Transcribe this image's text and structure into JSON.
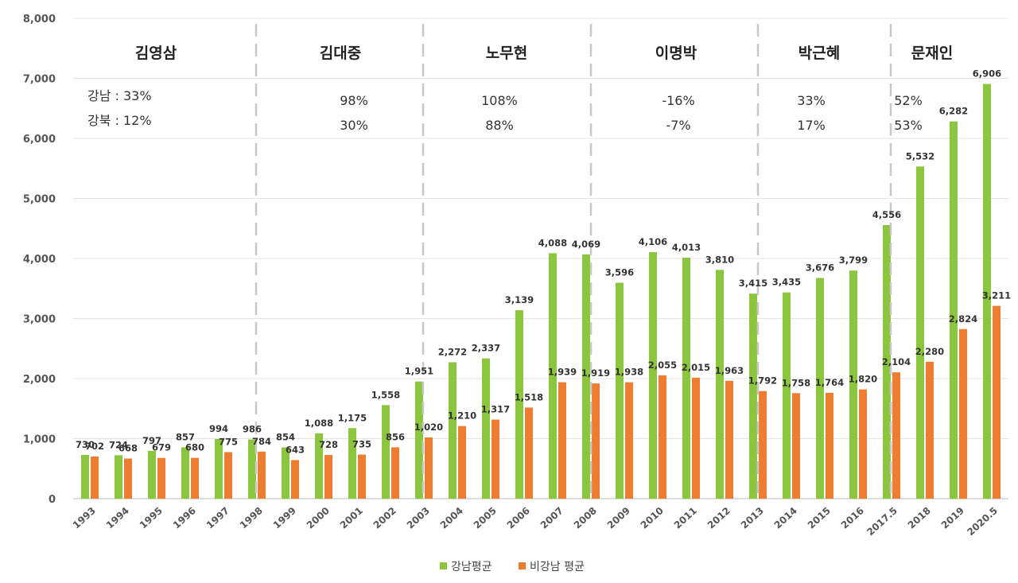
{
  "chart_data": {
    "type": "bar",
    "categories": [
      "1993",
      "1994",
      "1995",
      "1996",
      "1997",
      "1998",
      "1999",
      "2000",
      "2001",
      "2002",
      "2003",
      "2004",
      "2005",
      "2006",
      "2007",
      "2008",
      "2009",
      "2010",
      "2011",
      "2012",
      "2013",
      "2014",
      "2015",
      "2016",
      "2017.5",
      "2018",
      "2019",
      "2020.5"
    ],
    "series": [
      {
        "name": "강남평균",
        "color": "#8cc63f",
        "values": [
          730,
          724,
          797,
          857,
          994,
          986,
          854,
          1088,
          1175,
          1558,
          1951,
          2272,
          2337,
          3139,
          4088,
          4069,
          3596,
          4106,
          4013,
          3810,
          3415,
          3435,
          3676,
          3799,
          4556,
          5532,
          6282,
          6906
        ],
        "labels": [
          "730",
          "724",
          "797",
          "857",
          "994",
          "986",
          "854",
          "1,088",
          "1,175",
          "1,558",
          "1,951",
          "2,272",
          "2,337",
          "3,139",
          "4,088",
          "4,069",
          "3,596",
          "4,106",
          "4,013",
          "3,810",
          "3,415",
          "3,435",
          "3,676",
          "3,799",
          "4,556",
          "5,532",
          "6,282",
          "6,906"
        ]
      },
      {
        "name": "비강남 평균",
        "color": "#ed7d31",
        "values": [
          702,
          668,
          679,
          680,
          775,
          784,
          643,
          728,
          735,
          856,
          1020,
          1210,
          1317,
          1518,
          1939,
          1919,
          1938,
          2055,
          2015,
          1963,
          1792,
          1758,
          1764,
          1820,
          2104,
          2280,
          2824,
          3211
        ],
        "labels": [
          "702",
          "668",
          "679",
          "680",
          "775",
          "784",
          "643",
          "728",
          "735",
          "856",
          "1,020",
          "1,210",
          "1,317",
          "1,518",
          "1,939",
          "1,919",
          "1,938",
          "2,055",
          "2,015",
          "1,963",
          "1,792",
          "1,758",
          "1,764",
          "1,820",
          "2,104",
          "2,280",
          "2,824",
          "3,211"
        ]
      }
    ],
    "ylim": [
      0,
      8000
    ],
    "yticks": [
      0,
      1000,
      2000,
      3000,
      4000,
      5000,
      6000,
      7000,
      8000
    ],
    "ytick_labels": [
      "0",
      "1,000",
      "2,000",
      "3,000",
      "4,000",
      "5,000",
      "6,000",
      "7,000",
      "8,000"
    ],
    "grid": true,
    "legend": "bottom",
    "eras": [
      {
        "name": "김영삼",
        "line1": "강남  :  33%",
        "line2": "강북  :  12%"
      },
      {
        "name": "김대중",
        "line1": "98%",
        "line2": "30%"
      },
      {
        "name": "노무현",
        "line1": "108%",
        "line2": "88%"
      },
      {
        "name": "이명박",
        "line1": "-16%",
        "line2": "-7%"
      },
      {
        "name": "박근혜",
        "line1": "33%",
        "line2": "17%"
      },
      {
        "name": "문재인",
        "line1": "52%",
        "line2": "53%"
      }
    ]
  }
}
